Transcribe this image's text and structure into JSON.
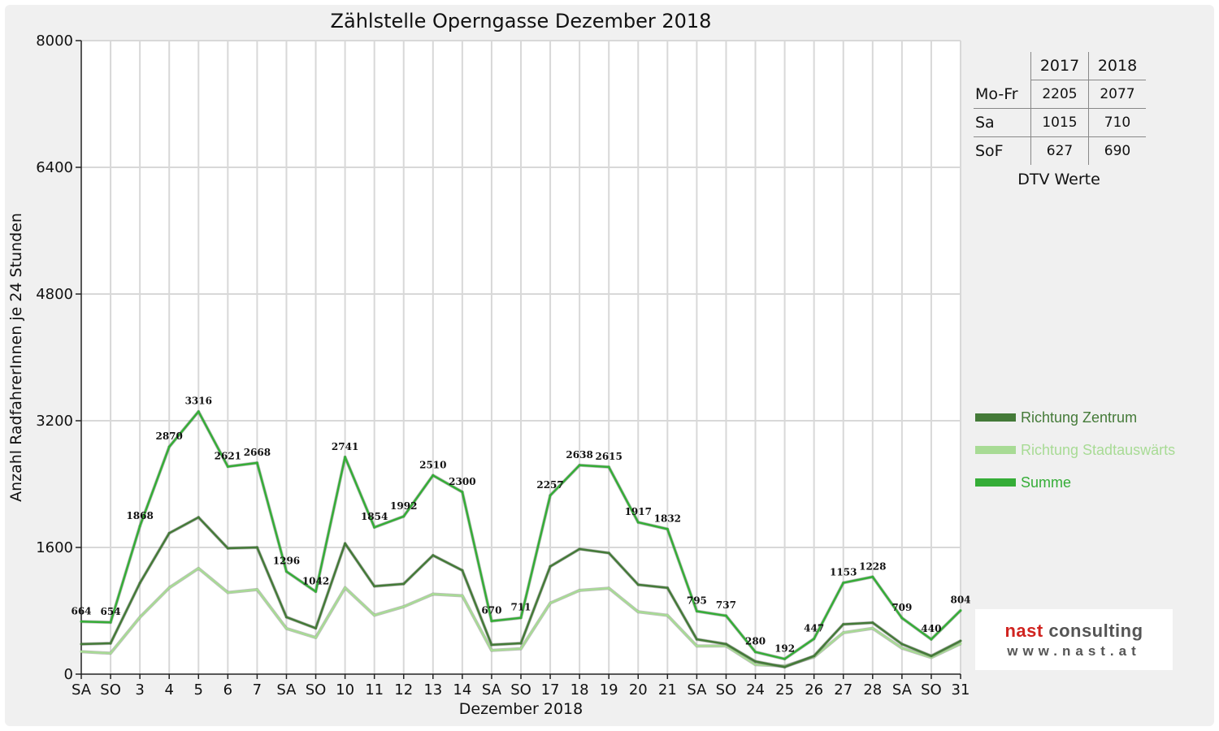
{
  "title": "Zählstelle Operngasse Dezember 2018",
  "dtv_table": {
    "headers": [
      "",
      "2017",
      "2018"
    ],
    "rows": [
      {
        "label": "Mo-Fr",
        "v2017": "2205",
        "v2018": "2077"
      },
      {
        "label": "Sa",
        "v2017": "1015",
        "v2018": "710"
      },
      {
        "label": "SoF",
        "v2017": "627",
        "v2018": "690"
      }
    ],
    "caption": "DTV Werte"
  },
  "logo": {
    "name_part1": "nast",
    "name_part2": "consulting",
    "url": "www.nast.at"
  },
  "colors": {
    "zentrum": "#447a38",
    "stadtauswaerts": "#a8db95",
    "summe": "#35ad37",
    "grid": "#d8d8d8",
    "holiday": "#e00000",
    "logo_nast": "#d0231f",
    "logo_consulting": "#555555"
  },
  "chart_data": {
    "type": "line",
    "title": "Zählstelle Operngasse Dezember 2018",
    "xlabel": "Dezember 2018",
    "ylabel": "Anzahl RadfahrerInnen je 24 Stunden",
    "ylim": [
      0,
      8000
    ],
    "yticks": [
      "0",
      "1600",
      "3200",
      "4800",
      "6400",
      "8000"
    ],
    "grid": true,
    "legend_position": "right",
    "categories": [
      "SA",
      "SO",
      "3",
      "4",
      "5",
      "6",
      "7",
      "SA",
      "SO",
      "10",
      "11",
      "12",
      "13",
      "14",
      "SA",
      "SO",
      "17",
      "18",
      "19",
      "20",
      "21",
      "SA",
      "SO",
      "24",
      "25",
      "26",
      "27",
      "28",
      "SA",
      "SO",
      "31"
    ],
    "holiday_categories": [
      1,
      8,
      15,
      22,
      24,
      25,
      29
    ],
    "series": [
      {
        "name": "Richtung Zentrum",
        "color": "#447a38",
        "values": [
          380,
          390,
          1150,
          1780,
          1980,
          1590,
          1600,
          720,
          580,
          1650,
          1110,
          1140,
          1500,
          1310,
          370,
          390,
          1360,
          1580,
          1530,
          1130,
          1090,
          440,
          380,
          160,
          90,
          230,
          630,
          650,
          380,
          230,
          420
        ]
      },
      {
        "name": "Richtung Stadtauswärts",
        "color": "#a8db95",
        "values": [
          284,
          264,
          718,
          1090,
          1336,
          1031,
          1068,
          576,
          462,
          1091,
          744,
          852,
          1010,
          990,
          300,
          321,
          897,
          1058,
          1085,
          787,
          742,
          355,
          357,
          120,
          102,
          217,
          523,
          578,
          329,
          210,
          384
        ]
      },
      {
        "name": "Summe",
        "color": "#35ad37",
        "values": [
          664,
          654,
          1868,
          2870,
          3316,
          2621,
          2668,
          1296,
          1042,
          2741,
          1854,
          1992,
          2510,
          2300,
          670,
          711,
          2257,
          2638,
          2615,
          1917,
          1832,
          795,
          737,
          280,
          192,
          447,
          1153,
          1228,
          709,
          440,
          804
        ]
      }
    ]
  }
}
